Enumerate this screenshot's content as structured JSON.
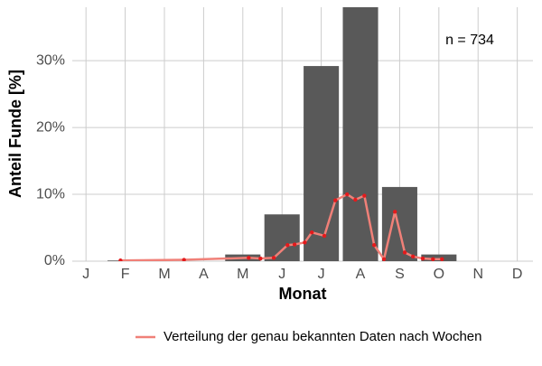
{
  "chart_data": {
    "type": "bar",
    "categories": [
      "J",
      "F",
      "M",
      "A",
      "M",
      "J",
      "J",
      "A",
      "S",
      "O",
      "N",
      "D"
    ],
    "values": [
      0,
      0.1,
      0,
      0,
      1,
      7,
      29.2,
      38,
      11.1,
      1,
      0,
      0
    ],
    "color": "#595959",
    "line": {
      "name": "Verteilung der genau bekannten Daten nach Wochen",
      "color": "#f08078",
      "point_color": "#e41a1c",
      "x": [
        1.88,
        3.5,
        5.15,
        5.45,
        5.79,
        6.14,
        6.32,
        6.58,
        6.76,
        7.08,
        7.36,
        7.66,
        7.87,
        8.1,
        8.35,
        8.6,
        8.88,
        9.13,
        9.34,
        9.59,
        9.85,
        10.08
      ],
      "values": [
        0.1,
        0.2,
        0.5,
        0.4,
        0.5,
        2.4,
        2.5,
        2.8,
        4.3,
        3.8,
        9.1,
        10,
        9.2,
        9.8,
        2.4,
        0.3,
        7.4,
        1.3,
        0.7,
        0.4,
        0.3,
        0.3
      ]
    },
    "xlim": [
      0.65,
      12.4
    ],
    "ylim": [
      0,
      38
    ],
    "yticks": [
      {
        "value": 0,
        "label": "0%"
      },
      {
        "value": 10,
        "label": "10%"
      },
      {
        "value": 20,
        "label": "20%"
      },
      {
        "value": 30,
        "label": "30%"
      }
    ],
    "xlabel": "Monat",
    "ylabel": "Anteil Funde [%]",
    "annotation": "n = 734",
    "grid": true
  }
}
